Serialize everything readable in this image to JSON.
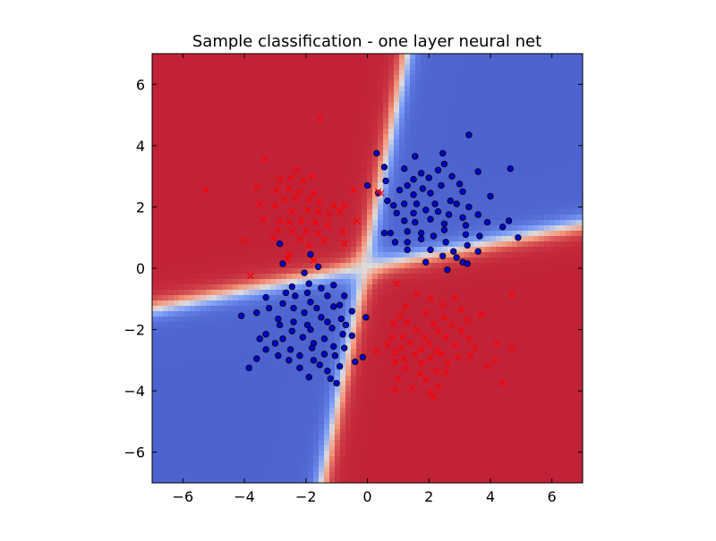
{
  "chart_data": {
    "type": "scatter",
    "title": "Sample classification - one layer neural net",
    "xlabel": "",
    "ylabel": "",
    "xlim": [
      -7,
      7
    ],
    "ylim": [
      -7,
      7
    ],
    "grid": false,
    "x_ticks": [
      -6,
      -4,
      -2,
      0,
      2,
      4,
      6
    ],
    "y_ticks": [
      -6,
      -4,
      -2,
      0,
      2,
      4,
      6
    ],
    "x_tick_labels": [
      "−6",
      "−4",
      "−2",
      "0",
      "2",
      "4",
      "6"
    ],
    "y_tick_labels": [
      "−6",
      "−4",
      "−2",
      "0",
      "2",
      "4",
      "6"
    ],
    "background": {
      "type": "decision-surface",
      "colormap": "coolwarm",
      "positive_class_color": "#b40426",
      "negative_class_color": "#3b4cc0",
      "boundary_color": "#dddcdc"
    },
    "series": [
      {
        "marker": "circle",
        "color": "#0000cc",
        "edge_color": "#000000",
        "points": [
          [
            3.3,
            4.35
          ],
          [
            0.3,
            3.75
          ],
          [
            1.55,
            3.65
          ],
          [
            2.45,
            3.75
          ],
          [
            4.65,
            3.25
          ],
          [
            2.5,
            3.4
          ],
          [
            1.75,
            3.1
          ],
          [
            3.6,
            3.15
          ],
          [
            0.55,
            3.3
          ],
          [
            1.2,
            3.25
          ],
          [
            2.3,
            3.2
          ],
          [
            1.5,
            2.9
          ],
          [
            2.0,
            2.95
          ],
          [
            2.75,
            3.0
          ],
          [
            0.6,
            2.85
          ],
          [
            0.0,
            2.7
          ],
          [
            1.3,
            2.7
          ],
          [
            1.8,
            2.6
          ],
          [
            2.4,
            2.7
          ],
          [
            3.0,
            2.75
          ],
          [
            3.1,
            2.5
          ],
          [
            0.35,
            2.45
          ],
          [
            1.05,
            2.55
          ],
          [
            1.5,
            2.4
          ],
          [
            2.05,
            2.45
          ],
          [
            4.0,
            2.35
          ],
          [
            0.65,
            2.2
          ],
          [
            0.85,
            2.05
          ],
          [
            1.2,
            2.1
          ],
          [
            1.6,
            2.1
          ],
          [
            2.2,
            2.1
          ],
          [
            2.7,
            2.2
          ],
          [
            3.3,
            2.0
          ],
          [
            2.9,
            2.1
          ],
          [
            0.95,
            1.8
          ],
          [
            1.5,
            1.8
          ],
          [
            1.9,
            1.9
          ],
          [
            2.3,
            1.85
          ],
          [
            2.65,
            1.75
          ],
          [
            3.1,
            1.65
          ],
          [
            3.6,
            1.75
          ],
          [
            4.6,
            1.55
          ],
          [
            4.4,
            1.35
          ],
          [
            1.2,
            1.55
          ],
          [
            1.55,
            1.5
          ],
          [
            2.05,
            1.6
          ],
          [
            2.5,
            1.45
          ],
          [
            3.2,
            1.4
          ],
          [
            3.9,
            1.5
          ],
          [
            0.55,
            1.15
          ],
          [
            0.75,
            1.15
          ],
          [
            1.3,
            1.2
          ],
          [
            1.75,
            1.15
          ],
          [
            2.15,
            1.05
          ],
          [
            2.5,
            1.25
          ],
          [
            3.2,
            1.1
          ],
          [
            3.65,
            1.05
          ],
          [
            4.9,
            1.0
          ],
          [
            0.9,
            0.85
          ],
          [
            1.3,
            0.85
          ],
          [
            1.75,
            0.95
          ],
          [
            2.55,
            0.85
          ],
          [
            3.25,
            0.75
          ],
          [
            1.3,
            0.6
          ],
          [
            2.05,
            0.6
          ],
          [
            2.8,
            0.55
          ],
          [
            3.6,
            0.55
          ],
          [
            2.45,
            0.4
          ],
          [
            2.9,
            0.35
          ],
          [
            1.9,
            0.2
          ],
          [
            3.1,
            0.2
          ],
          [
            3.25,
            0.15
          ],
          [
            2.6,
            -0.05
          ],
          [
            -2.85,
            0.8
          ],
          [
            -1.85,
            0.45
          ],
          [
            -2.75,
            0.15
          ],
          [
            -1.6,
            0.05
          ],
          [
            -2.05,
            -0.15
          ],
          [
            -1.9,
            -0.5
          ],
          [
            -2.45,
            -0.6
          ],
          [
            -1.1,
            -0.55
          ],
          [
            -2.65,
            -0.8
          ],
          [
            -1.5,
            -0.65
          ],
          [
            -1.95,
            -0.8
          ],
          [
            -0.75,
            -0.9
          ],
          [
            -1.3,
            -0.9
          ],
          [
            -2.35,
            -0.9
          ],
          [
            -3.3,
            -0.95
          ],
          [
            -2.75,
            -1.15
          ],
          [
            -1.85,
            -1.1
          ],
          [
            -0.9,
            -1.2
          ],
          [
            -3.2,
            -1.3
          ],
          [
            -2.4,
            -1.3
          ],
          [
            -1.65,
            -1.3
          ],
          [
            -1.1,
            -1.25
          ],
          [
            -0.5,
            -1.4
          ],
          [
            -2.05,
            -1.45
          ],
          [
            -3.6,
            -1.45
          ],
          [
            -4.1,
            -1.55
          ],
          [
            -2.9,
            -1.65
          ],
          [
            -1.5,
            -1.6
          ],
          [
            -0.85,
            -1.65
          ],
          [
            -0.05,
            -1.6
          ],
          [
            -2.4,
            -1.75
          ],
          [
            -1.95,
            -1.85
          ],
          [
            -1.3,
            -1.75
          ],
          [
            -0.7,
            -1.85
          ],
          [
            -2.85,
            -1.85
          ],
          [
            -3.3,
            -2.15
          ],
          [
            -2.45,
            -2.05
          ],
          [
            -1.85,
            -2.0
          ],
          [
            -1.15,
            -1.95
          ],
          [
            -0.8,
            -2.15
          ],
          [
            -3.5,
            -2.3
          ],
          [
            -2.75,
            -2.3
          ],
          [
            -2.1,
            -2.25
          ],
          [
            -1.4,
            -2.3
          ],
          [
            -0.5,
            -2.2
          ],
          [
            -3.0,
            -2.45
          ],
          [
            -1.75,
            -2.45
          ],
          [
            -1.1,
            -2.55
          ],
          [
            -3.3,
            -2.65
          ],
          [
            -2.5,
            -2.65
          ],
          [
            -1.8,
            -2.6
          ],
          [
            -0.75,
            -2.6
          ],
          [
            -2.9,
            -2.85
          ],
          [
            -2.2,
            -2.85
          ],
          [
            -1.4,
            -2.8
          ],
          [
            -3.6,
            -2.95
          ],
          [
            -2.55,
            -3.0
          ],
          [
            -1.75,
            -3.0
          ],
          [
            -1.05,
            -2.85
          ],
          [
            -0.15,
            -2.9
          ],
          [
            -2.2,
            -3.25
          ],
          [
            -1.55,
            -3.15
          ],
          [
            -0.9,
            -3.2
          ],
          [
            -3.85,
            -3.25
          ],
          [
            -1.3,
            -3.35
          ],
          [
            -1.9,
            -3.55
          ],
          [
            -1.2,
            -3.6
          ],
          [
            -1.0,
            -3.75
          ],
          [
            -0.4,
            -3.05
          ]
        ]
      },
      {
        "marker": "x",
        "color": "#ff0000",
        "points": [
          [
            -1.55,
            4.9
          ],
          [
            -3.35,
            3.55
          ],
          [
            -1.8,
            3.0
          ],
          [
            -2.3,
            3.2
          ],
          [
            -2.85,
            2.9
          ],
          [
            -2.5,
            2.95
          ],
          [
            -2.1,
            2.85
          ],
          [
            -3.6,
            2.65
          ],
          [
            -5.25,
            2.55
          ],
          [
            -2.95,
            2.55
          ],
          [
            -2.55,
            2.6
          ],
          [
            -2.2,
            2.5
          ],
          [
            -1.75,
            2.45
          ],
          [
            -0.45,
            2.55
          ],
          [
            -2.7,
            2.25
          ],
          [
            -2.35,
            2.3
          ],
          [
            -1.9,
            2.25
          ],
          [
            -1.55,
            2.15
          ],
          [
            -3.5,
            2.1
          ],
          [
            -3.0,
            2.05
          ],
          [
            -1.1,
            2.05
          ],
          [
            -0.75,
            2.05
          ],
          [
            -2.45,
            1.85
          ],
          [
            -1.95,
            1.9
          ],
          [
            -1.6,
            1.85
          ],
          [
            -1.25,
            1.75
          ],
          [
            -0.9,
            1.85
          ],
          [
            -3.4,
            1.6
          ],
          [
            -2.85,
            1.55
          ],
          [
            -2.55,
            1.5
          ],
          [
            -2.15,
            1.55
          ],
          [
            -1.7,
            1.5
          ],
          [
            -1.3,
            1.4
          ],
          [
            -0.35,
            1.55
          ],
          [
            -2.9,
            1.25
          ],
          [
            -2.45,
            1.2
          ],
          [
            -2.0,
            1.2
          ],
          [
            -1.6,
            1.15
          ],
          [
            -0.8,
            1.2
          ],
          [
            -3.05,
            1.0
          ],
          [
            -2.2,
            0.95
          ],
          [
            -1.4,
            0.9
          ],
          [
            -4.0,
            0.9
          ],
          [
            -1.9,
            0.75
          ],
          [
            -0.75,
            0.8
          ],
          [
            -2.55,
            0.45
          ],
          [
            -2.6,
            0.3
          ],
          [
            -1.75,
            0.25
          ],
          [
            -3.8,
            -0.25
          ],
          [
            0.45,
            2.45
          ],
          [
            0.35,
            2.5
          ],
          [
            0.95,
            -0.5
          ],
          [
            1.6,
            -0.85
          ],
          [
            2.85,
            -0.95
          ],
          [
            2.05,
            -1.0
          ],
          [
            4.7,
            -0.85
          ],
          [
            1.25,
            -1.25
          ],
          [
            2.45,
            -1.2
          ],
          [
            3.05,
            -1.35
          ],
          [
            1.05,
            -1.55
          ],
          [
            1.9,
            -1.45
          ],
          [
            2.5,
            -1.6
          ],
          [
            3.7,
            -1.5
          ],
          [
            0.85,
            -1.8
          ],
          [
            1.3,
            -1.75
          ],
          [
            2.15,
            -1.8
          ],
          [
            2.75,
            -1.85
          ],
          [
            3.25,
            -1.7
          ],
          [
            1.6,
            -2.0
          ],
          [
            2.3,
            -2.05
          ],
          [
            3.05,
            -2.05
          ],
          [
            0.8,
            -2.25
          ],
          [
            1.15,
            -2.25
          ],
          [
            1.85,
            -2.25
          ],
          [
            2.55,
            -2.25
          ],
          [
            3.3,
            -2.3
          ],
          [
            1.4,
            -2.45
          ],
          [
            2.0,
            -2.45
          ],
          [
            2.85,
            -2.5
          ],
          [
            0.65,
            -2.5
          ],
          [
            4.2,
            -2.45
          ],
          [
            1.1,
            -2.6
          ],
          [
            1.75,
            -2.65
          ],
          [
            2.25,
            -2.7
          ],
          [
            3.5,
            -2.6
          ],
          [
            0.3,
            -2.7
          ],
          [
            0.9,
            -2.75
          ],
          [
            1.55,
            -2.8
          ],
          [
            2.4,
            -2.8
          ],
          [
            4.7,
            -2.6
          ],
          [
            1.2,
            -2.95
          ],
          [
            2.05,
            -2.95
          ],
          [
            2.95,
            -2.9
          ],
          [
            3.35,
            -2.85
          ],
          [
            0.9,
            -3.05
          ],
          [
            1.75,
            -3.1
          ],
          [
            2.6,
            -3.1
          ],
          [
            4.15,
            -3.0
          ],
          [
            1.25,
            -3.25
          ],
          [
            2.25,
            -3.35
          ],
          [
            3.9,
            -3.2
          ],
          [
            1.7,
            -3.45
          ],
          [
            2.55,
            -3.4
          ],
          [
            1.0,
            -3.6
          ],
          [
            1.9,
            -3.65
          ],
          [
            4.4,
            -3.75
          ],
          [
            1.45,
            -3.9
          ],
          [
            2.3,
            -3.85
          ],
          [
            0.9,
            -3.95
          ],
          [
            2.05,
            -4.05
          ],
          [
            2.15,
            -4.2
          ]
        ]
      }
    ]
  }
}
